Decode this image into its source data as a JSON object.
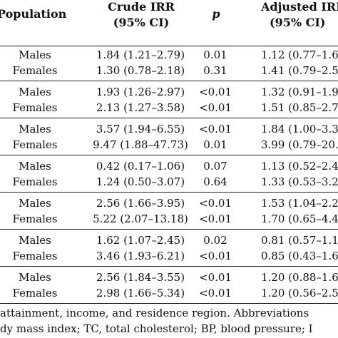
{
  "table": {
    "headers": {
      "population": "Population",
      "crude_line1": "Crude IRR",
      "crude_line2": "(95% CI)",
      "p": "p",
      "adjusted_line1": "Adjusted IRR",
      "adjusted_line2": "(95% CI)"
    },
    "groups": [
      {
        "rows": [
          {
            "population": "Males",
            "crude": "1.84 (1.21–2.79)",
            "p": "0.01",
            "adjusted": "1.12 (0.77–1.6"
          },
          {
            "population": "Females",
            "crude": "1.30 (0.78–2.18)",
            "p": "0.31",
            "adjusted": "1.41 (0.79–2.5"
          }
        ]
      },
      {
        "rows": [
          {
            "population": "Males",
            "crude": "1.93 (1.26–2.97)",
            "p": "<0.01",
            "adjusted": "1.32 (0.91–1.9"
          },
          {
            "population": "Females",
            "crude": "2.13 (1.27–3.58)",
            "p": "<0.01",
            "adjusted": "1.51 (0.85–2.7"
          }
        ]
      },
      {
        "rows": [
          {
            "population": "Males",
            "crude": "3.57 (1.94–6.55)",
            "p": "<0.01",
            "adjusted": "1.84 (1.00–3.3"
          },
          {
            "population": "Females",
            "crude": "9.47 (1.88–47.73)",
            "p": "0.01",
            "adjusted": "3.99 (0.79–20.1"
          }
        ]
      },
      {
        "rows": [
          {
            "population": "Males",
            "crude": "0.42 (0.17–1.06)",
            "p": "0.07",
            "adjusted": "1.13 (0.52–2.4"
          },
          {
            "population": "Females",
            "crude": "1.24 (0.50–3.07)",
            "p": "0.64",
            "adjusted": "1.33 (0.53–3.2"
          }
        ]
      },
      {
        "rows": [
          {
            "population": "Males",
            "crude": "2.56 (1.66–3.95)",
            "p": "<0.01",
            "adjusted": "1.53 (1.04–2.2"
          },
          {
            "population": "Females",
            "crude": "5.22 (2.07–13.18)",
            "p": "<0.01",
            "adjusted": "1.70 (0.65–4.4"
          }
        ]
      },
      {
        "rows": [
          {
            "population": "Males",
            "crude": "1.62 (1.07–2.45)",
            "p": "0.02",
            "adjusted": "0.81 (0.57–1.1"
          },
          {
            "population": "Females",
            "crude": "3.46 (1.93–6.21)",
            "p": "<0.01",
            "adjusted": "0.85 (0.43–1.6"
          }
        ]
      },
      {
        "rows": [
          {
            "population": "Males",
            "crude": "2.56 (1.84–3.55)",
            "p": "<0.01",
            "adjusted": "1.20 (0.88–1.6"
          },
          {
            "population": "Females",
            "crude": "2.98 (1.66–5.34)",
            "p": "<0.01",
            "adjusted": "1.20 (0.56–2.5"
          }
        ]
      }
    ]
  },
  "footnote": {
    "line1": "attainment, income, and residence region. Abbreviations",
    "line2": "dy mass index; TC, total cholesterol; BP, blood pressure; I"
  }
}
